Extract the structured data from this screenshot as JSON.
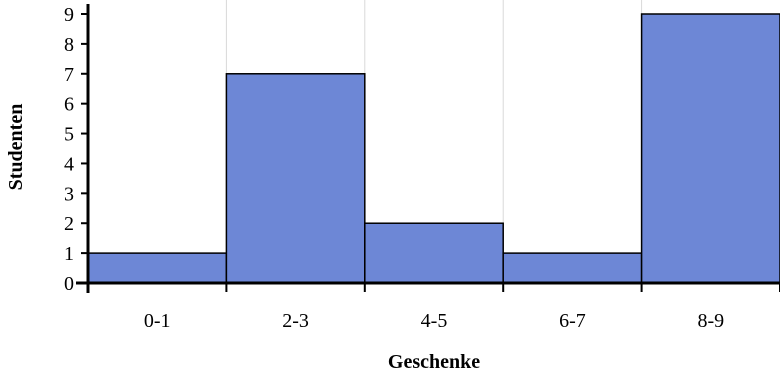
{
  "chart_data": {
    "type": "bar",
    "title": "",
    "xlabel": "Geschenke",
    "ylabel": "Studenten",
    "categories": [
      "0-1",
      "2-3",
      "4-5",
      "6-7",
      "8-9"
    ],
    "values": [
      1,
      7,
      2,
      1,
      9
    ],
    "ylim": [
      0,
      9
    ],
    "yticks": [
      "0",
      "1",
      "2",
      "3",
      "4",
      "5",
      "6",
      "7",
      "8",
      "9"
    ],
    "grid": true,
    "colors": {
      "bar": "#6d87d6",
      "bar_edge": "#000000",
      "grid": "#d9d9d9",
      "axis": "#000000"
    }
  }
}
